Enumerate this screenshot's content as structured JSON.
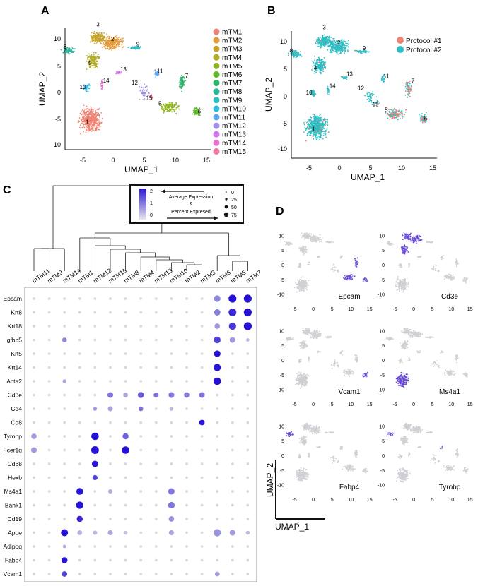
{
  "panels": {
    "A": "A",
    "B": "B",
    "C": "C",
    "D": "D"
  },
  "umap_axes": {
    "x_title": "UMAP_1",
    "y_title": "UMAP_2"
  },
  "panel_a": {
    "x_ticks": [
      "-5",
      "0",
      "5",
      "10",
      "15"
    ],
    "y_ticks": [
      "10",
      "5",
      "0",
      "-5",
      "-10"
    ],
    "legend": [
      {
        "label": "mTM1",
        "color": "#f08474"
      },
      {
        "label": "mTM2",
        "color": "#e29a3b"
      },
      {
        "label": "mTM3",
        "color": "#c9a42b"
      },
      {
        "label": "mTM4",
        "color": "#b2ab27"
      },
      {
        "label": "mTM5",
        "color": "#92b523"
      },
      {
        "label": "mTM6",
        "color": "#5eb82a"
      },
      {
        "label": "mTM7",
        "color": "#2db56a"
      },
      {
        "label": "mTM8",
        "color": "#27b89a"
      },
      {
        "label": "mTM9",
        "color": "#2bbec4"
      },
      {
        "label": "mTM10",
        "color": "#33b8e2"
      },
      {
        "label": "mTM11",
        "color": "#5da8ef"
      },
      {
        "label": "mTM12",
        "color": "#a58ef2"
      },
      {
        "label": "mTM13",
        "color": "#d177ee"
      },
      {
        "label": "mTM14",
        "color": "#ed6fd1"
      },
      {
        "label": "mTM15",
        "color": "#f07aa2"
      }
    ],
    "cluster_labels": [
      "1",
      "2",
      "3",
      "4",
      "5",
      "6",
      "7",
      "8",
      "9",
      "10",
      "11",
      "12",
      "13",
      "14",
      "15"
    ]
  },
  "panel_b": {
    "x_ticks": [
      "-5",
      "0",
      "5",
      "10",
      "15"
    ],
    "y_ticks": [
      "10",
      "5",
      "0",
      "-5",
      "-10"
    ],
    "legend": [
      {
        "label": "Protocol #1",
        "color": "#f08474"
      },
      {
        "label": "Protocol #2",
        "color": "#2bbec4"
      }
    ]
  },
  "panel_c": {
    "legend": {
      "color_ticks": [
        "2",
        "1",
        "0"
      ],
      "title_line1": "Average Expression",
      "title_line2": "&",
      "title_line3": "Percent Expresed",
      "size_ticks": [
        "0",
        "25",
        "50",
        "75"
      ]
    },
    "chart_data": {
      "type": "dotplot",
      "columns": [
        "mTM11",
        "mTM9",
        "mTM14",
        "mTM1",
        "mTM12",
        "mTM15",
        "mTM8",
        "mTM4",
        "mTM13",
        "mTM10",
        "mTM2",
        "mTM3",
        "mTM6",
        "mTM5",
        "mTM7"
      ],
      "genes": [
        "Epcam",
        "Krt8",
        "Krt18",
        "Igfbp5",
        "Krt5",
        "Krt14",
        "Acta2",
        "Cd3e",
        "Cd4",
        "Cd8",
        "Tyrobp",
        "Fcer1g",
        "Cd68",
        "Hexb",
        "Ms4a1",
        "Bank1",
        "Cd19",
        "Apoe",
        "Adipoq",
        "Fabp4",
        "Vcam1"
      ],
      "expression": [
        [
          0,
          0,
          0,
          0,
          0,
          0,
          0,
          0,
          0,
          0,
          0,
          0,
          0.8,
          2,
          2
        ],
        [
          0,
          0,
          0,
          0,
          0,
          0,
          0,
          0,
          0,
          0,
          0,
          0,
          0.9,
          1.8,
          2
        ],
        [
          0,
          0,
          0,
          0,
          0,
          0,
          0,
          0,
          0,
          0,
          0,
          0,
          0.6,
          1.6,
          2
        ],
        [
          0,
          0,
          0.8,
          0,
          0,
          0,
          0,
          0,
          0,
          0,
          0,
          0,
          1.5,
          0.6,
          0.3
        ],
        [
          0,
          0,
          0,
          0,
          0,
          0,
          0,
          0,
          0,
          0,
          0,
          0,
          2,
          0,
          0
        ],
        [
          0,
          0,
          0,
          0,
          0,
          0,
          0,
          0,
          0,
          0,
          0,
          0,
          2,
          0,
          0
        ],
        [
          0,
          0,
          0.5,
          0,
          0,
          0,
          0,
          0,
          0,
          0,
          0,
          0,
          2,
          0,
          0
        ],
        [
          0,
          0,
          0,
          0,
          0,
          1,
          0.5,
          1.3,
          1,
          1,
          0.9,
          1,
          0,
          0,
          0
        ],
        [
          0,
          0,
          0,
          0,
          0.6,
          0.5,
          0,
          1,
          0,
          0.3,
          0,
          0,
          0,
          0,
          0
        ],
        [
          0,
          0,
          0,
          0,
          0,
          0,
          0,
          0,
          0,
          0,
          0,
          2,
          0,
          0,
          0
        ],
        [
          0.6,
          0,
          0,
          0,
          2,
          0,
          1.2,
          0,
          0,
          0,
          0,
          0,
          0,
          0,
          0
        ],
        [
          0.6,
          0,
          0,
          0,
          2,
          0,
          2,
          0,
          0,
          0,
          0,
          0,
          0,
          0,
          0
        ],
        [
          0,
          0,
          0,
          0,
          2,
          0,
          0,
          0,
          0,
          0,
          0,
          0,
          0,
          0,
          0
        ],
        [
          0,
          0,
          0,
          0,
          1.5,
          0,
          0,
          0,
          0,
          0,
          0,
          0,
          0,
          0,
          0
        ],
        [
          0,
          0,
          0,
          2,
          0,
          0.4,
          0,
          0,
          0,
          1,
          0,
          0,
          0,
          0,
          0
        ],
        [
          0,
          0,
          0,
          2,
          0,
          0,
          0,
          0,
          0,
          1,
          0,
          0,
          0,
          0,
          0
        ],
        [
          0,
          0,
          0,
          1.8,
          0,
          0,
          0,
          0,
          0,
          0.7,
          0,
          0,
          0,
          0,
          0
        ],
        [
          0,
          0,
          2,
          0.4,
          0.3,
          0.5,
          0.2,
          0,
          0,
          0.5,
          0,
          0,
          0.7,
          0.6,
          0.3
        ],
        [
          0,
          0,
          0.5,
          0,
          0,
          0,
          0,
          0,
          0,
          0,
          0,
          0,
          0,
          0,
          0
        ],
        [
          0,
          0,
          2,
          0,
          0,
          0,
          0,
          0,
          0,
          0,
          0,
          0,
          0,
          0,
          0
        ],
        [
          0,
          0,
          1.5,
          0,
          0,
          0,
          0,
          0,
          0,
          0,
          0,
          0,
          0.6,
          0,
          0
        ]
      ],
      "percent": [
        [
          5,
          5,
          5,
          5,
          5,
          5,
          5,
          5,
          5,
          5,
          5,
          5,
          55,
          85,
          85
        ],
        [
          5,
          5,
          5,
          5,
          5,
          5,
          5,
          5,
          5,
          5,
          5,
          5,
          50,
          80,
          85
        ],
        [
          5,
          5,
          5,
          5,
          5,
          5,
          5,
          5,
          5,
          5,
          5,
          5,
          35,
          70,
          85
        ],
        [
          5,
          5,
          25,
          5,
          5,
          5,
          5,
          5,
          5,
          5,
          5,
          5,
          60,
          40,
          10
        ],
        [
          5,
          5,
          5,
          5,
          5,
          5,
          5,
          5,
          5,
          5,
          5,
          5,
          55,
          5,
          5
        ],
        [
          5,
          5,
          5,
          5,
          5,
          5,
          5,
          5,
          5,
          5,
          5,
          5,
          70,
          5,
          5
        ],
        [
          5,
          5,
          15,
          5,
          5,
          5,
          5,
          5,
          5,
          5,
          5,
          5,
          75,
          5,
          5
        ],
        [
          5,
          5,
          5,
          5,
          5,
          40,
          25,
          45,
          30,
          40,
          35,
          40,
          5,
          5,
          5
        ],
        [
          5,
          5,
          5,
          5,
          15,
          30,
          5,
          25,
          5,
          15,
          5,
          5,
          5,
          5,
          5
        ],
        [
          5,
          5,
          5,
          5,
          5,
          5,
          5,
          5,
          5,
          5,
          5,
          35,
          5,
          5,
          5
        ],
        [
          35,
          5,
          5,
          5,
          75,
          5,
          45,
          5,
          5,
          5,
          5,
          5,
          5,
          5,
          5
        ],
        [
          40,
          5,
          5,
          5,
          80,
          5,
          75,
          5,
          5,
          5,
          5,
          5,
          5,
          5,
          5
        ],
        [
          5,
          5,
          5,
          5,
          50,
          5,
          5,
          5,
          5,
          5,
          5,
          5,
          5,
          5,
          5
        ],
        [
          5,
          5,
          5,
          5,
          30,
          5,
          5,
          5,
          5,
          5,
          5,
          5,
          5,
          5,
          5
        ],
        [
          5,
          5,
          5,
          60,
          5,
          20,
          5,
          5,
          5,
          50,
          5,
          5,
          5,
          5,
          5
        ],
        [
          5,
          5,
          5,
          70,
          5,
          5,
          5,
          5,
          5,
          55,
          5,
          5,
          5,
          5,
          5
        ],
        [
          5,
          5,
          5,
          45,
          5,
          5,
          5,
          5,
          5,
          35,
          5,
          5,
          5,
          5,
          5
        ],
        [
          5,
          5,
          65,
          25,
          20,
          30,
          15,
          5,
          5,
          30,
          5,
          5,
          70,
          40,
          15
        ],
        [
          5,
          5,
          10,
          5,
          5,
          5,
          5,
          5,
          5,
          5,
          5,
          5,
          5,
          5,
          5
        ],
        [
          5,
          5,
          45,
          5,
          5,
          5,
          5,
          5,
          5,
          5,
          5,
          5,
          5,
          5,
          5
        ],
        [
          5,
          5,
          35,
          5,
          5,
          5,
          5,
          5,
          5,
          5,
          5,
          5,
          25,
          5,
          5
        ]
      ],
      "color_range": [
        0,
        2
      ],
      "size_range": [
        0,
        75
      ]
    }
  },
  "panel_d": {
    "x_ticks": [
      "-5",
      "0",
      "5",
      "10",
      "15"
    ],
    "y_ticks": [
      "10",
      "5",
      "0",
      "-5",
      "-10"
    ],
    "genes": [
      "Epcam",
      "Cd3e",
      "Vcam1",
      "Ms4a1",
      "Fabp4",
      "Tyrobp"
    ],
    "axis_x": "UMAP_1",
    "axis_y": "UMAP_2"
  }
}
